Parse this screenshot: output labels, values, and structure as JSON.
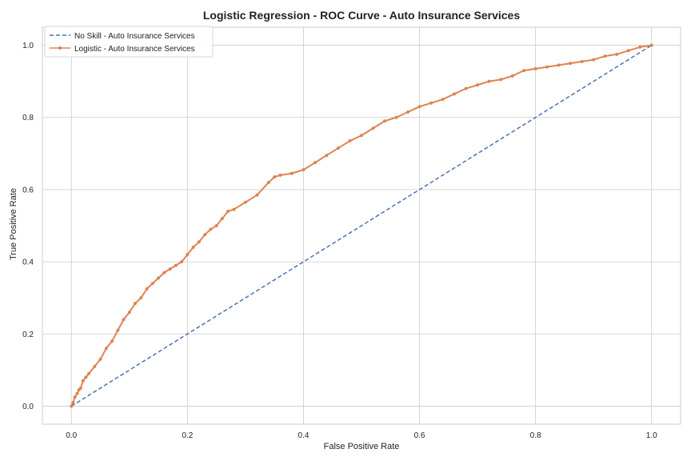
{
  "chart_data": {
    "type": "line",
    "title": "Logistic Regression - ROC Curve - Auto Insurance Services",
    "xlabel": "False Positive Rate",
    "ylabel": "True Positive Rate",
    "xlim": [
      -0.05,
      1.05
    ],
    "ylim": [
      -0.05,
      1.05
    ],
    "xticks": [
      "0.0",
      "0.2",
      "0.4",
      "0.6",
      "0.8",
      "1.0"
    ],
    "yticks": [
      "0.0",
      "0.2",
      "0.4",
      "0.6",
      "0.8",
      "1.0"
    ],
    "grid": true,
    "legend_position": "top-left",
    "series": [
      {
        "name": "No Skill - Auto Insurance Services",
        "style": "dashed",
        "color": "#4c72b0",
        "x": [
          0,
          1
        ],
        "y": [
          0,
          1
        ]
      },
      {
        "name": "Logistic - Auto Insurance Services",
        "style": "solid-with-points",
        "color": "#dd8452",
        "x": [
          0.0,
          0.003,
          0.006,
          0.01,
          0.013,
          0.016,
          0.02,
          0.025,
          0.03,
          0.04,
          0.05,
          0.06,
          0.07,
          0.08,
          0.09,
          0.1,
          0.11,
          0.12,
          0.13,
          0.14,
          0.15,
          0.16,
          0.17,
          0.18,
          0.19,
          0.2,
          0.21,
          0.22,
          0.23,
          0.24,
          0.25,
          0.26,
          0.27,
          0.28,
          0.3,
          0.32,
          0.34,
          0.35,
          0.36,
          0.38,
          0.4,
          0.42,
          0.44,
          0.46,
          0.48,
          0.5,
          0.52,
          0.54,
          0.56,
          0.58,
          0.6,
          0.62,
          0.64,
          0.66,
          0.68,
          0.7,
          0.72,
          0.74,
          0.76,
          0.78,
          0.8,
          0.82,
          0.84,
          0.86,
          0.88,
          0.9,
          0.92,
          0.94,
          0.96,
          0.98,
          1.0
        ],
        "y": [
          0.0,
          0.01,
          0.025,
          0.035,
          0.045,
          0.05,
          0.07,
          0.08,
          0.09,
          0.11,
          0.13,
          0.16,
          0.18,
          0.21,
          0.24,
          0.26,
          0.285,
          0.3,
          0.325,
          0.34,
          0.355,
          0.37,
          0.38,
          0.39,
          0.4,
          0.42,
          0.44,
          0.455,
          0.475,
          0.49,
          0.5,
          0.52,
          0.54,
          0.545,
          0.565,
          0.585,
          0.62,
          0.635,
          0.64,
          0.645,
          0.655,
          0.675,
          0.695,
          0.715,
          0.735,
          0.75,
          0.77,
          0.79,
          0.8,
          0.815,
          0.83,
          0.84,
          0.85,
          0.865,
          0.88,
          0.89,
          0.9,
          0.905,
          0.915,
          0.93,
          0.935,
          0.94,
          0.945,
          0.95,
          0.955,
          0.96,
          0.97,
          0.975,
          0.985,
          0.995,
          1.0
        ]
      }
    ]
  }
}
